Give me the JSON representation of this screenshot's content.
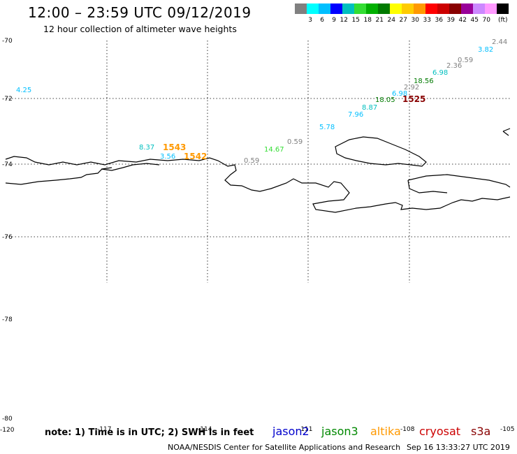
{
  "header": {
    "title": "12:00 – 23:59 UTC 09/12/2019",
    "subtitle": "12 hour collection of altimeter wave heights"
  },
  "legend": {
    "unit": "(ft)",
    "items": [
      {
        "label": "",
        "color": "#808080"
      },
      {
        "label": "3",
        "color": "#00ffff"
      },
      {
        "label": "6",
        "color": "#00bfff"
      },
      {
        "label": "9",
        "color": "#0000ff"
      },
      {
        "label": "12",
        "color": "#00bfbf"
      },
      {
        "label": "15",
        "color": "#33dd33"
      },
      {
        "label": "18",
        "color": "#00b000"
      },
      {
        "label": "21",
        "color": "#007a00"
      },
      {
        "label": "24",
        "color": "#ffff00"
      },
      {
        "label": "27",
        "color": "#ffcc00"
      },
      {
        "label": "30",
        "color": "#ff9900"
      },
      {
        "label": "33",
        "color": "#ff0000"
      },
      {
        "label": "36",
        "color": "#cc0000"
      },
      {
        "label": "39",
        "color": "#880000"
      },
      {
        "label": "42",
        "color": "#990099"
      },
      {
        "label": "45",
        "color": "#cc88ff"
      },
      {
        "label": "70",
        "color": "#ff99ff"
      },
      {
        "label": "",
        "color": "#000000"
      }
    ]
  },
  "axes": {
    "lat_labels": [
      "-70",
      "-72",
      "-74",
      "-76",
      "-78",
      "-80"
    ],
    "lon_labels": [
      "-120",
      "-117",
      "-114",
      "-111",
      "-108",
      "-105"
    ]
  },
  "observations": [
    {
      "text": "2.44",
      "color": "#808080"
    },
    {
      "text": "3.82",
      "color": "#00bfff"
    },
    {
      "text": "0.59",
      "color": "#808080"
    },
    {
      "text": "2.36",
      "color": "#808080"
    },
    {
      "text": "6.98",
      "color": "#00bfbf"
    },
    {
      "text": "18.56",
      "color": "#007a00"
    },
    {
      "text": "2.92",
      "color": "#808080"
    },
    {
      "text": "6.98",
      "color": "#00bfff"
    },
    {
      "text": "18.05",
      "color": "#007a00"
    },
    {
      "text": "8.87",
      "color": "#00bfbf"
    },
    {
      "text": "7.96",
      "color": "#00bfff"
    },
    {
      "text": "5.78",
      "color": "#00bfff"
    },
    {
      "text": "0.59",
      "color": "#808080"
    },
    {
      "text": "14.67",
      "color": "#33dd33"
    },
    {
      "text": "0.59",
      "color": "#808080"
    },
    {
      "text": "4.25",
      "color": "#00bfff"
    },
    {
      "text": "8.37",
      "color": "#00bfbf"
    },
    {
      "text": "3.56",
      "color": "#00bfff"
    }
  ],
  "time_labels": [
    {
      "text": "1525",
      "color": "#880000"
    },
    {
      "text": "1543",
      "color": "#ff9900"
    },
    {
      "text": "1542",
      "color": "#ff9900"
    }
  ],
  "note": "note: 1) Time is in UTC; 2) SWH is in feet",
  "satellites": [
    {
      "name": "jason2",
      "color": "#0000cc"
    },
    {
      "name": "jason3",
      "color": "#008800"
    },
    {
      "name": "altika",
      "color": "#ff9900"
    },
    {
      "name": "cryosat",
      "color": "#cc0000"
    },
    {
      "name": "s3a",
      "color": "#880000"
    }
  ],
  "footer": {
    "credit": "NOAA/NESDIS Center for Satellite Applications and Research",
    "generated": "Sep 16 13:33:27 UTC 2019"
  }
}
